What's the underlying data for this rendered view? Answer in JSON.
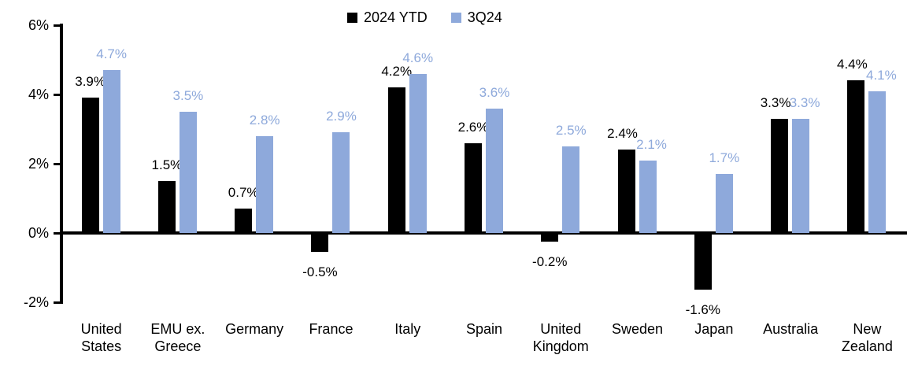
{
  "chart_data": {
    "type": "bar",
    "title": "",
    "categories": [
      "United States",
      "EMU ex. Greece",
      "Germany",
      "France",
      "Italy",
      "Spain",
      "United Kingdom",
      "Sweden",
      "Japan",
      "Australia",
      "New Zealand"
    ],
    "series": [
      {
        "name": "2024 YTD",
        "color": "#000000",
        "values": [
          3.9,
          1.5,
          0.7,
          -0.5,
          4.2,
          2.6,
          -0.2,
          2.4,
          -1.6,
          3.3,
          4.4
        ],
        "labels": [
          "3.9%",
          "1.5%",
          "0.7%",
          "-0.5%",
          "4.2%",
          "2.6%",
          "-0.2%",
          "2.4%",
          "-1.6%",
          "3.3%",
          "4.4%"
        ]
      },
      {
        "name": "3Q24",
        "color": "#8EA9DB",
        "values": [
          4.7,
          3.5,
          2.8,
          2.9,
          4.6,
          3.6,
          2.5,
          2.1,
          1.7,
          3.3,
          4.1
        ],
        "labels": [
          "4.7%",
          "3.5%",
          "2.8%",
          "2.9%",
          "4.6%",
          "3.6%",
          "2.5%",
          "2.1%",
          "1.7%",
          "3.3%",
          "4.1%"
        ]
      }
    ],
    "y_axis": {
      "tick_labels": [
        "6%",
        "4%",
        "2%",
        "0%",
        "-2%"
      ],
      "tick_values": [
        6,
        4,
        2,
        0,
        -2
      ],
      "min": -2,
      "max": 6,
      "grid": false
    },
    "legend": {
      "position": "top-center"
    },
    "colors": {
      "axis": "#000000",
      "background": "#FFFFFF"
    }
  }
}
